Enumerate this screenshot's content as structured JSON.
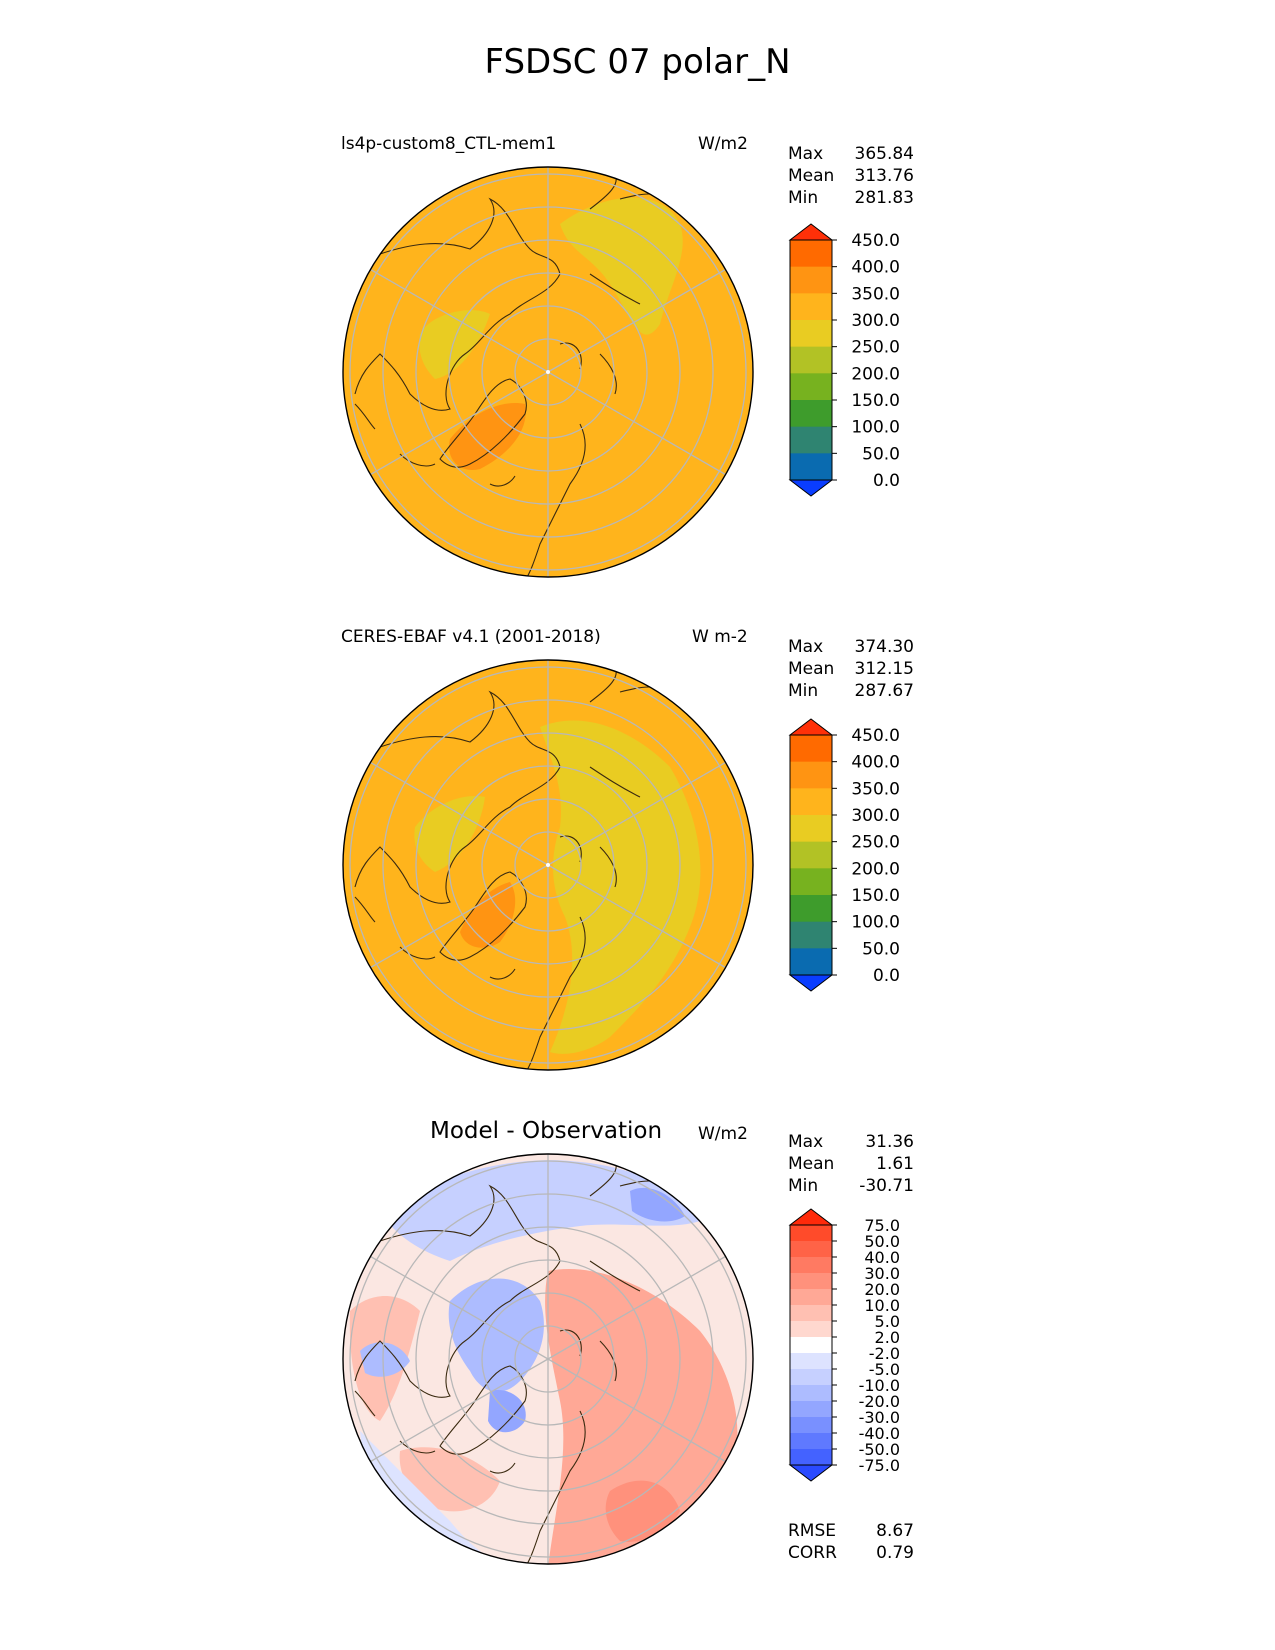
{
  "figure": {
    "title": "FSDSC 07 polar_N"
  },
  "panels": [
    {
      "id": "model",
      "title": "ls4p-custom8_CTL-mem1",
      "units": "W/m2",
      "stats": [
        {
          "label": "Max",
          "value": "365.84"
        },
        {
          "label": "Mean",
          "value": "313.76"
        },
        {
          "label": "Min",
          "value": "281.83"
        }
      ],
      "colorbar": {
        "labels": [
          "450.0",
          "400.0",
          "350.0",
          "300.0",
          "250.0",
          "200.0",
          "150.0",
          "100.0",
          "50.0",
          "0.0"
        ],
        "colors": [
          "#ff3008",
          "#ff6a00",
          "#ff9412",
          "#ffb41c",
          "#e9cc22",
          "#b2c225",
          "#77b21f",
          "#3e9c2c",
          "#2f8471",
          "#0a6bb0",
          "#0a3dff"
        ]
      }
    },
    {
      "id": "obs",
      "title": "CERES-EBAF v4.1 (2001-2018)",
      "units": "W m-2",
      "stats": [
        {
          "label": "Max",
          "value": "374.30"
        },
        {
          "label": "Mean",
          "value": "312.15"
        },
        {
          "label": "Min",
          "value": "287.67"
        }
      ],
      "colorbar": {
        "labels": [
          "450.0",
          "400.0",
          "350.0",
          "300.0",
          "250.0",
          "200.0",
          "150.0",
          "100.0",
          "50.0",
          "0.0"
        ],
        "colors": [
          "#ff3008",
          "#ff6a00",
          "#ff9412",
          "#ffb41c",
          "#e9cc22",
          "#b2c225",
          "#77b21f",
          "#3e9c2c",
          "#2f8471",
          "#0a6bb0",
          "#0a3dff"
        ]
      }
    },
    {
      "id": "diff",
      "title": "Model - Observation",
      "units": "W/m2",
      "stats": [
        {
          "label": "Max",
          "value": "31.36"
        },
        {
          "label": "Mean",
          "value": "1.61"
        },
        {
          "label": "Min",
          "value": "-30.71"
        }
      ],
      "metrics": [
        {
          "label": "RMSE",
          "value": "8.67"
        },
        {
          "label": "CORR",
          "value": "0.79"
        }
      ],
      "colorbar": {
        "labels": [
          "75.0",
          "50.0",
          "40.0",
          "30.0",
          "20.0",
          "10.0",
          "5.0",
          "2.0",
          "-2.0",
          "-5.0",
          "-10.0",
          "-20.0",
          "-30.0",
          "-40.0",
          "-50.0",
          "-75.0"
        ],
        "colors": [
          "#ff2a0a",
          "#ff4b2a",
          "#ff6347",
          "#ff7a62",
          "#ff917c",
          "#ffa896",
          "#ffc0b2",
          "#ffd8cf",
          "#ffffff",
          "#dde3ff",
          "#c6d0ff",
          "#adbcff",
          "#93a6ff",
          "#7990ff",
          "#5f79ff",
          "#4462ff",
          "#2a4aff"
        ]
      }
    }
  ]
}
